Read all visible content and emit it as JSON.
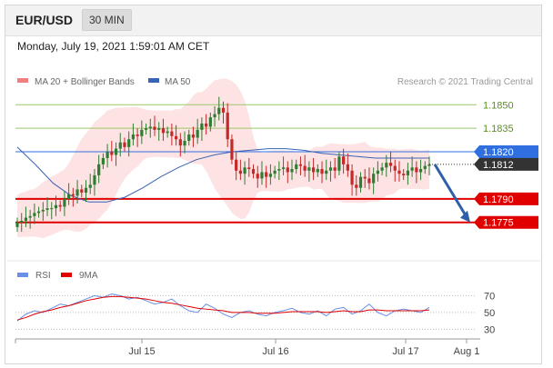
{
  "header": {
    "symbol": "EUR/USD",
    "timeframe": "30 MIN"
  },
  "datetime": "Monday, July 19, 2021 1:59:01 AM CET",
  "legend": {
    "bollinger": "MA 20 + Bollinger Bands",
    "ma50": "MA 50",
    "rsi": "RSI",
    "rsi_ma": "9MA"
  },
  "watermark": "Research © 2021 Trading Central",
  "colors": {
    "bollinger": "#f08080",
    "ma50": "#3b63b5",
    "up": "#2e7d32",
    "down": "#c62828",
    "green_level": "#6a9a2a",
    "red_level": "#e00000",
    "blue_level": "#2f6fe0",
    "price": "#333333",
    "arrow": "#2f5fa8"
  },
  "chart_data": [
    {
      "type": "line",
      "title": "EUR/USD 30 MIN candlestick",
      "x_labels": [
        "Jul 15",
        "Jul 16",
        "Jul 17",
        "Aug 1"
      ],
      "ylim": [
        1.1765,
        1.186
      ],
      "levels": [
        {
          "value": 1.185,
          "label": "1.1850",
          "kind": "resistance"
        },
        {
          "value": 1.1835,
          "label": "1.1835",
          "kind": "resistance"
        },
        {
          "value": 1.182,
          "label": "1.1820",
          "kind": "pivot"
        },
        {
          "value": 1.179,
          "label": "1.1790",
          "kind": "support"
        },
        {
          "value": 1.1775,
          "label": "1.1775",
          "kind": "support"
        }
      ],
      "last_price": {
        "value": 1.1812,
        "label": "1.1812"
      },
      "close_series": [
        1.1775,
        1.1776,
        1.1778,
        1.1779,
        1.1781,
        1.1782,
        1.1783,
        1.1784,
        1.1784,
        1.1786,
        1.1785,
        1.179,
        1.1793,
        1.1792,
        1.1796,
        1.1794,
        1.1797,
        1.1799,
        1.1805,
        1.1812,
        1.1816,
        1.182,
        1.1818,
        1.1822,
        1.1826,
        1.1823,
        1.1828,
        1.1831,
        1.183,
        1.1834,
        1.1835,
        1.1836,
        1.1834,
        1.1835,
        1.1832,
        1.1833,
        1.183,
        1.1828,
        1.1824,
        1.1827,
        1.1831,
        1.1829,
        1.1834,
        1.1838,
        1.1836,
        1.1842,
        1.1844,
        1.1848,
        1.1845,
        1.1828,
        1.1815,
        1.1808,
        1.1806,
        1.181,
        1.1809,
        1.1806,
        1.1803,
        1.1807,
        1.1804,
        1.1806,
        1.1808,
        1.1809,
        1.181,
        1.1807,
        1.1809,
        1.1812,
        1.1811,
        1.1808,
        1.181,
        1.1807,
        1.1809,
        1.1806,
        1.1808,
        1.181,
        1.1808,
        1.1817,
        1.1812,
        1.1808,
        1.1799,
        1.1797,
        1.1804,
        1.1803,
        1.18,
        1.1806,
        1.1808,
        1.181,
        1.1813,
        1.1811,
        1.1808,
        1.1806,
        1.1805,
        1.1808,
        1.181,
        1.1807,
        1.1809,
        1.1811,
        1.1812
      ],
      "ma50_series": [
        1.1823,
        1.1812,
        1.18,
        1.1792,
        1.1788,
        1.1788,
        1.1791,
        1.1797,
        1.1804,
        1.181,
        1.1815,
        1.1818,
        1.182,
        1.1821,
        1.1822,
        1.1822,
        1.1821,
        1.1819,
        1.1818,
        1.1817,
        1.1816,
        1.1816,
        1.1816,
        1.1816
      ],
      "projection": {
        "from": 1.1812,
        "to": 1.1775
      }
    },
    {
      "type": "line",
      "title": "RSI",
      "ylim": [
        25,
        78
      ],
      "y_ticks": [
        70,
        50,
        30
      ],
      "series": [
        {
          "name": "RSI",
          "values": [
            40,
            48,
            52,
            50,
            55,
            60,
            58,
            62,
            66,
            70,
            68,
            72,
            70,
            66,
            68,
            64,
            60,
            62,
            66,
            58,
            52,
            50,
            60,
            55,
            48,
            44,
            50,
            52,
            48,
            46,
            50,
            52,
            55,
            50,
            48,
            52,
            46,
            54,
            56,
            48,
            52,
            60,
            50,
            46,
            52,
            54,
            52,
            50,
            56
          ]
        },
        {
          "name": "9MA",
          "values": [
            41,
            44,
            48,
            51,
            53,
            56,
            58,
            61,
            64,
            66,
            68,
            69,
            69,
            68,
            67,
            66,
            64,
            62,
            61,
            59,
            57,
            55,
            54,
            53,
            52,
            50,
            50,
            50,
            49,
            49,
            49,
            50,
            51,
            51,
            51,
            51,
            50,
            51,
            52,
            51,
            51,
            53,
            53,
            52,
            52,
            52,
            52,
            52,
            53
          ]
        }
      ]
    }
  ]
}
